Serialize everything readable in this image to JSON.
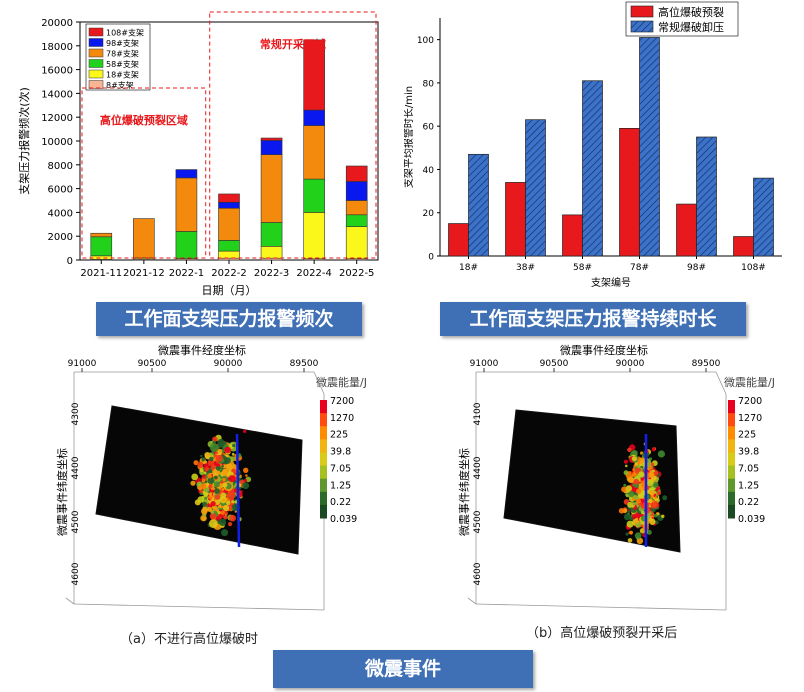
{
  "colors": {
    "banner": "#3f6fb5",
    "red": "#e8191c",
    "blue": "#0a18f0",
    "orange": "#f38a0d",
    "green": "#22d11a",
    "yellow": "#fbf71a",
    "peach": "#f7b594"
  },
  "chart_data": [
    {
      "type": "bar",
      "stacked": true,
      "title": "工作面支架压力报警频次",
      "xlabel": "日期（月）",
      "ylabel": "支架压力报警频次(次)",
      "ylim": [
        0,
        20000
      ],
      "yticks": [
        0,
        2000,
        4000,
        6000,
        8000,
        10000,
        12000,
        14000,
        16000,
        18000,
        20000
      ],
      "categories": [
        "2021-11",
        "2021-12",
        "2022-1",
        "2022-2",
        "2022-3",
        "2022-4",
        "2022-5"
      ],
      "series": [
        {
          "name": "8#支架",
          "color": "#f7b594",
          "values": [
            50,
            80,
            100,
            150,
            150,
            100,
            100
          ]
        },
        {
          "name": "18#支架",
          "color": "#fbf71a",
          "values": [
            300,
            100,
            0,
            600,
            1000,
            3900,
            2700
          ]
        },
        {
          "name": "58#支架",
          "color": "#22d11a",
          "values": [
            1600,
            0,
            2300,
            900,
            2000,
            2800,
            1000
          ]
        },
        {
          "name": "78#支架",
          "color": "#f38a0d",
          "values": [
            300,
            3300,
            4500,
            2700,
            5700,
            4500,
            1200
          ]
        },
        {
          "name": "98#支架",
          "color": "#0a18f0",
          "values": [
            0,
            0,
            700,
            500,
            1200,
            1300,
            1600
          ]
        },
        {
          "name": "108#支架",
          "color": "#e8191c",
          "values": [
            0,
            0,
            0,
            700,
            200,
            5900,
            1300
          ]
        }
      ],
      "annotations": [
        {
          "text": "高位爆破预裂区域",
          "color": "#e8191c",
          "categories": [
            "2021-11",
            "2022-1"
          ]
        },
        {
          "text": "常规开采区域",
          "color": "#e8191c",
          "categories": [
            "2022-2",
            "2022-5"
          ]
        }
      ],
      "legend": "top-left"
    },
    {
      "type": "bar",
      "grouped": true,
      "title": "工作面支架压力报警持续时长",
      "xlabel": "支架编号",
      "ylabel": "支架平均报警时长/min",
      "ylim": [
        0,
        110
      ],
      "yticks": [
        0,
        20,
        40,
        60,
        80,
        100
      ],
      "categories": [
        "18#",
        "38#",
        "58#",
        "78#",
        "98#",
        "108#"
      ],
      "series": [
        {
          "name": "高位爆破预裂",
          "color": "#e8191c",
          "values": [
            15,
            34,
            19,
            59,
            24,
            9
          ]
        },
        {
          "name": "常规爆破卸压",
          "color": "#3a73c9",
          "hatch": true,
          "values": [
            47,
            63,
            81,
            101,
            55,
            36
          ]
        }
      ],
      "legend": "top-right"
    },
    {
      "type": "scatter",
      "title": "微震事件",
      "panels": [
        {
          "caption": "（a）不进行高位爆破时",
          "xlabel": "微震事件经度坐标",
          "ylabel": "微震事件纬度坐标",
          "xticks": [
            "91000",
            "90500",
            "90000",
            "89500"
          ],
          "yticks": [
            "4300",
            "4400",
            "4500",
            "4600"
          ],
          "colorbar_title": "微震能量/J",
          "colorbar_ticks": [
            "7200",
            "1270",
            "225",
            "39.8",
            "7.05",
            "1.25",
            "0.22",
            "0.039"
          ]
        },
        {
          "caption": "（b）高位爆破预裂开采后",
          "xlabel": "微震事件经度坐标",
          "ylabel": "微震事件纬度坐标",
          "xticks": [
            "91000",
            "90500",
            "90000",
            "89500"
          ],
          "yticks": [
            "4100",
            "4400",
            "4500",
            "4600"
          ],
          "colorbar_title": "微震能量/J",
          "colorbar_ticks": [
            "7200",
            "1270",
            "225",
            "39.8",
            "7.05",
            "1.25",
            "0.22",
            "0.039"
          ]
        }
      ]
    }
  ],
  "banners": {
    "left": "工作面支架压力报警频次",
    "right": "工作面支架压力报警持续时长",
    "bottom": "微震事件"
  }
}
